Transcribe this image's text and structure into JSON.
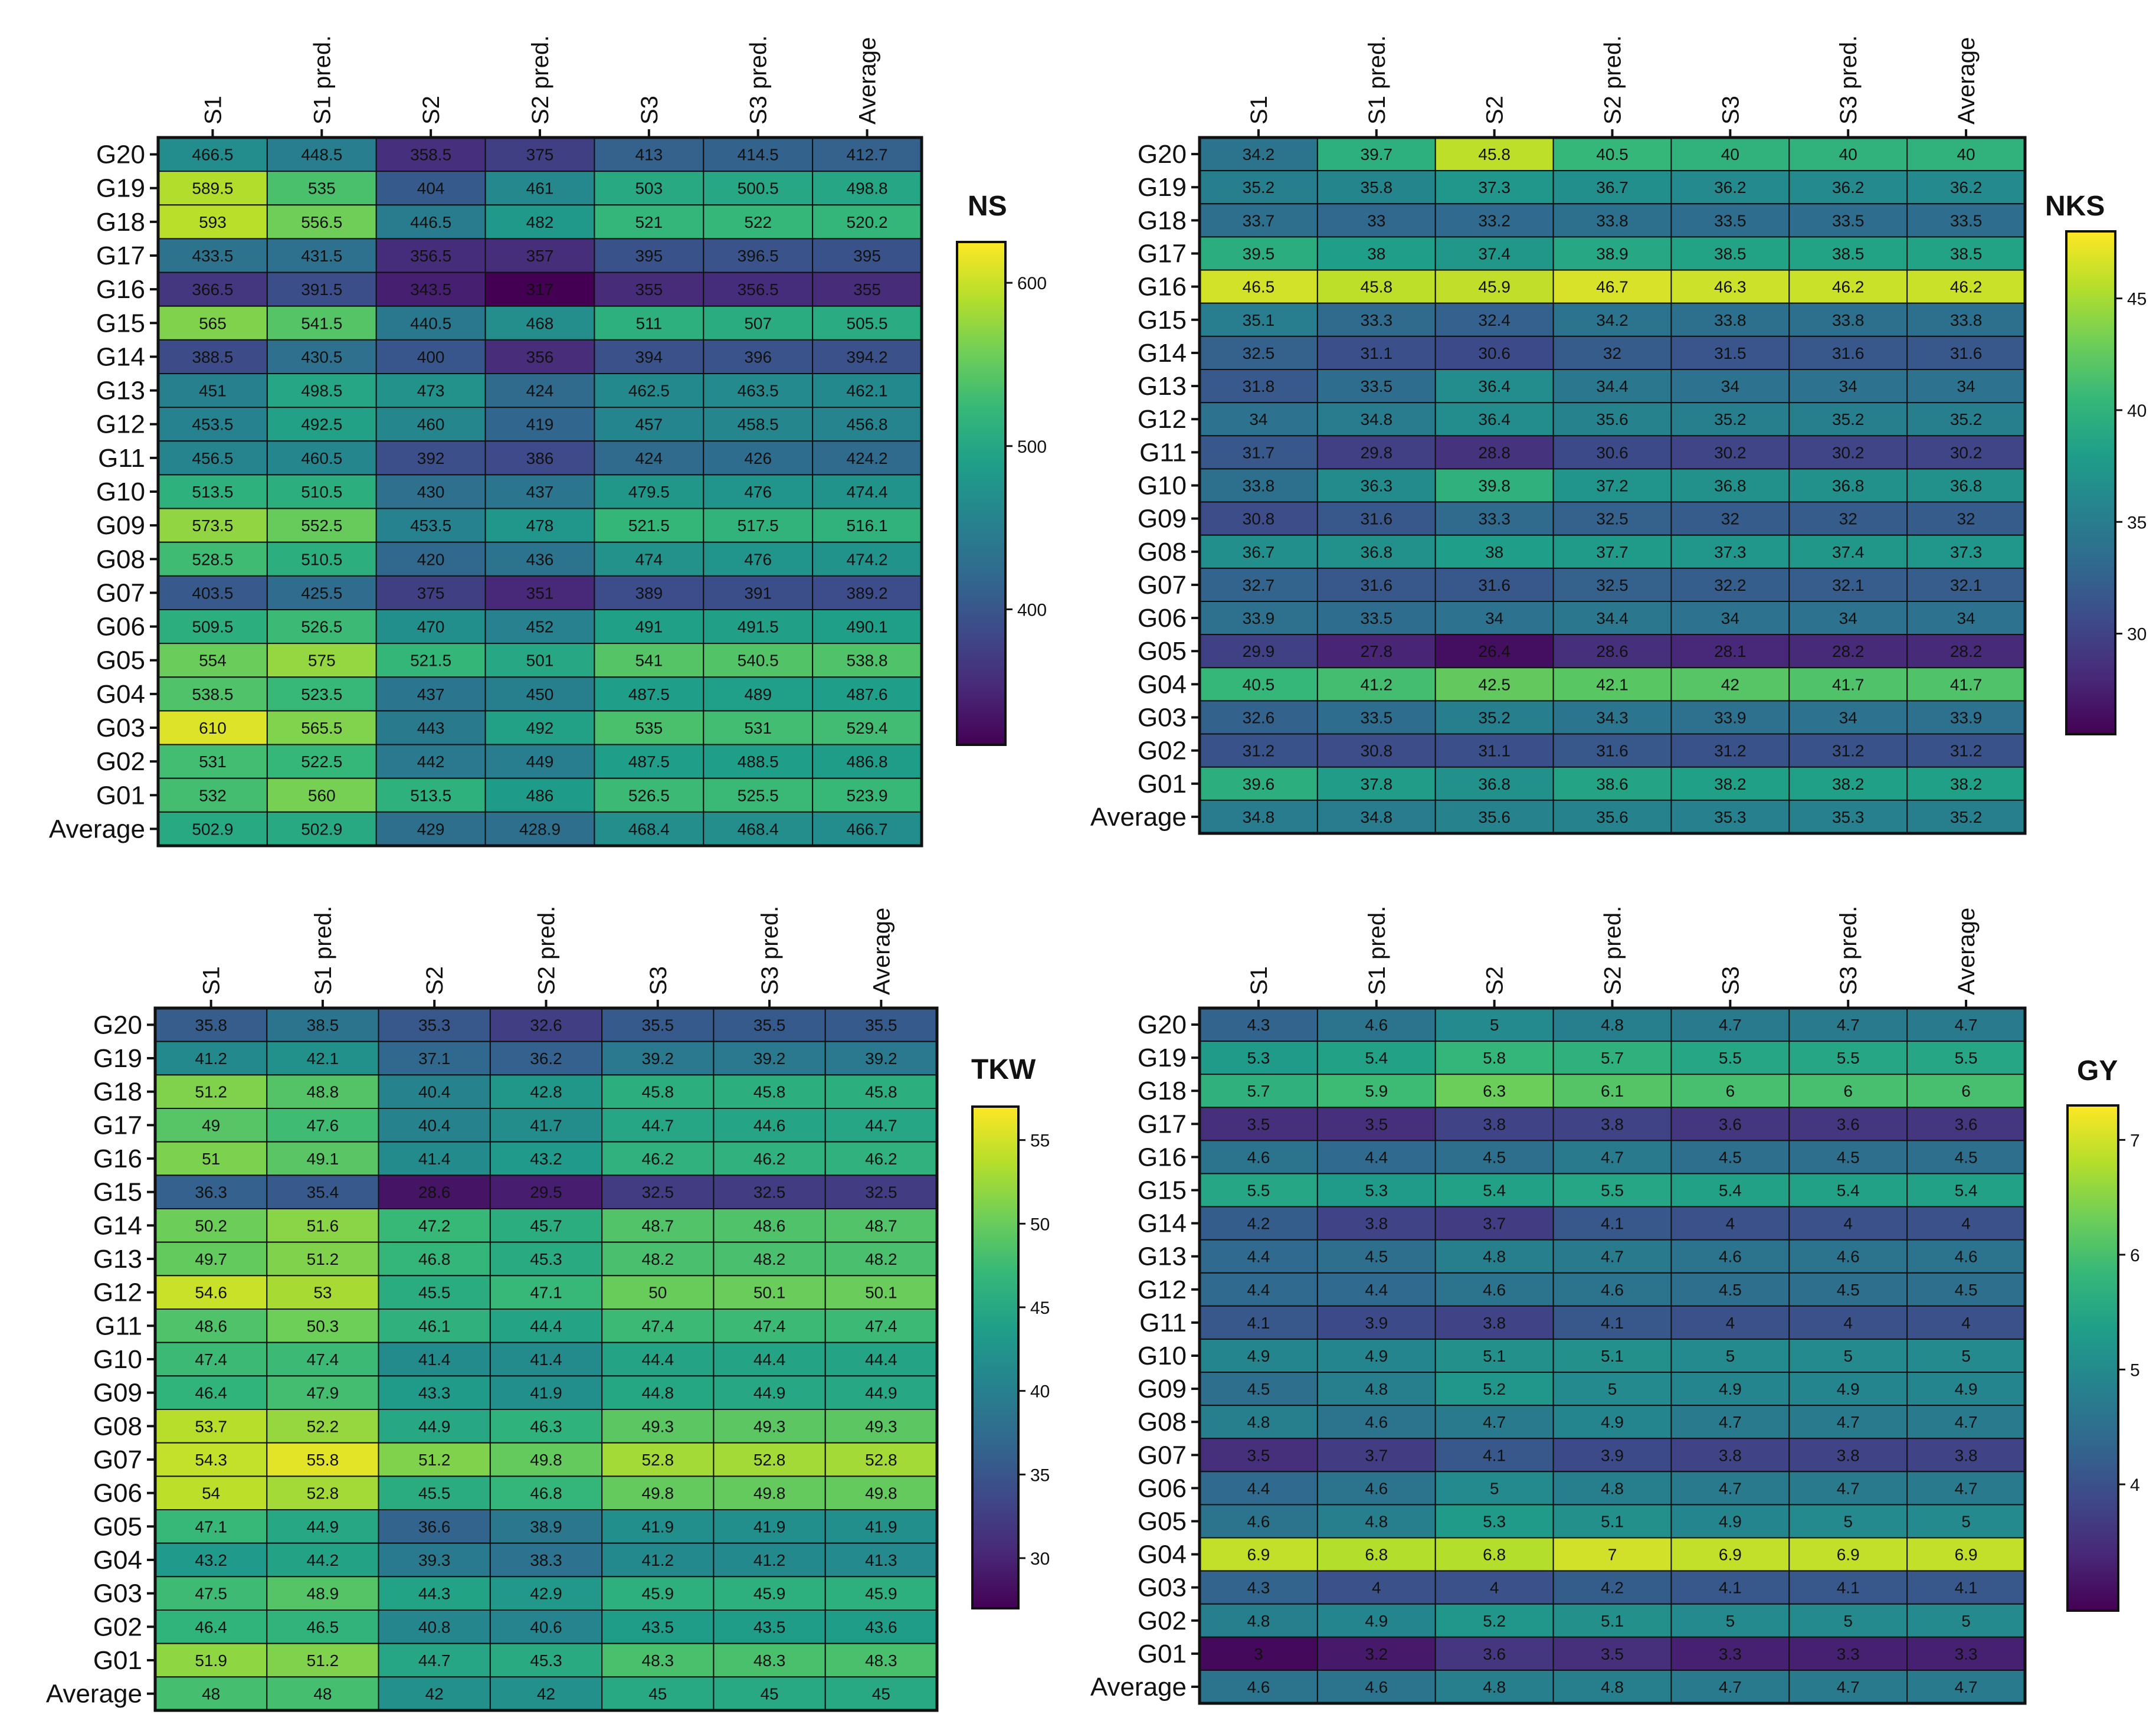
{
  "colors": {
    "viridis": [
      "#440154",
      "#482878",
      "#3e4989",
      "#31688e",
      "#26828e",
      "#1f9e89",
      "#35b779",
      "#6ece58",
      "#b5de2b",
      "#fde725"
    ],
    "outline": "#111111",
    "text": "#111111"
  },
  "chart_data": [
    {
      "type": "heatmap",
      "title": "NS",
      "columns": [
        "S1",
        "S1 pred.",
        "S2",
        "S2 pred.",
        "S3",
        "S3 pred.",
        "Average"
      ],
      "rows": [
        "G20",
        "G19",
        "G18",
        "G17",
        "G16",
        "G15",
        "G14",
        "G13",
        "G12",
        "G11",
        "G10",
        "G09",
        "G08",
        "G07",
        "G06",
        "G05",
        "G04",
        "G03",
        "G02",
        "G01",
        "Average"
      ],
      "values": [
        [
          "466.5",
          "448.5",
          "358.5",
          "375",
          "413",
          "414.5",
          "412.7"
        ],
        [
          "589.5",
          "535",
          "404",
          "461",
          "503",
          "500.5",
          "498.8"
        ],
        [
          "593",
          "556.5",
          "446.5",
          "482",
          "521",
          "522",
          "520.2"
        ],
        [
          "433.5",
          "431.5",
          "356.5",
          "357",
          "395",
          "396.5",
          "395"
        ],
        [
          "366.5",
          "391.5",
          "343.5",
          "317",
          "355",
          "356.5",
          "355"
        ],
        [
          "565",
          "541.5",
          "440.5",
          "468",
          "511",
          "507",
          "505.5"
        ],
        [
          "388.5",
          "430.5",
          "400",
          "356",
          "394",
          "396",
          "394.2"
        ],
        [
          "451",
          "498.5",
          "473",
          "424",
          "462.5",
          "463.5",
          "462.1"
        ],
        [
          "453.5",
          "492.5",
          "460",
          "419",
          "457",
          "458.5",
          "456.8"
        ],
        [
          "456.5",
          "460.5",
          "392",
          "386",
          "424",
          "426",
          "424.2"
        ],
        [
          "513.5",
          "510.5",
          "430",
          "437",
          "479.5",
          "476",
          "474.4"
        ],
        [
          "573.5",
          "552.5",
          "453.5",
          "478",
          "521.5",
          "517.5",
          "516.1"
        ],
        [
          "528.5",
          "510.5",
          "420",
          "436",
          "474",
          "476",
          "474.2"
        ],
        [
          "403.5",
          "425.5",
          "375",
          "351",
          "389",
          "391",
          "389.2"
        ],
        [
          "509.5",
          "526.5",
          "470",
          "452",
          "491",
          "491.5",
          "490.1"
        ],
        [
          "554",
          "575",
          "521.5",
          "501",
          "541",
          "540.5",
          "538.8"
        ],
        [
          "538.5",
          "523.5",
          "437",
          "450",
          "487.5",
          "489",
          "487.6"
        ],
        [
          "610",
          "565.5",
          "443",
          "492",
          "535",
          "531",
          "529.4"
        ],
        [
          "531",
          "522.5",
          "442",
          "449",
          "487.5",
          "488.5",
          "486.8"
        ],
        [
          "532",
          "560",
          "513.5",
          "486",
          "526.5",
          "525.5",
          "523.9"
        ],
        [
          "502.9",
          "502.9",
          "429",
          "428.9",
          "468.4",
          "468.4",
          "466.7"
        ]
      ],
      "colorbar": {
        "range": [
          317,
          625
        ],
        "ticks": [
          400,
          500,
          600
        ]
      }
    },
    {
      "type": "heatmap",
      "title": "NKS",
      "columns": [
        "S1",
        "S1 pred.",
        "S2",
        "S2 pred.",
        "S3",
        "S3 pred.",
        "Average"
      ],
      "rows": [
        "G20",
        "G19",
        "G18",
        "G17",
        "G16",
        "G15",
        "G14",
        "G13",
        "G12",
        "G11",
        "G10",
        "G09",
        "G08",
        "G07",
        "G06",
        "G05",
        "G04",
        "G03",
        "G02",
        "G01",
        "Average"
      ],
      "values": [
        [
          "34.2",
          "39.7",
          "45.8",
          "40.5",
          "40",
          "40",
          "40"
        ],
        [
          "35.2",
          "35.8",
          "37.3",
          "36.7",
          "36.2",
          "36.2",
          "36.2"
        ],
        [
          "33.7",
          "33",
          "33.2",
          "33.8",
          "33.5",
          "33.5",
          "33.5"
        ],
        [
          "39.5",
          "38",
          "37.4",
          "38.9",
          "38.5",
          "38.5",
          "38.5"
        ],
        [
          "46.5",
          "45.8",
          "45.9",
          "46.7",
          "46.3",
          "46.2",
          "46.2"
        ],
        [
          "35.1",
          "33.3",
          "32.4",
          "34.2",
          "33.8",
          "33.8",
          "33.8"
        ],
        [
          "32.5",
          "31.1",
          "30.6",
          "32",
          "31.5",
          "31.6",
          "31.6"
        ],
        [
          "31.8",
          "33.5",
          "36.4",
          "34.4",
          "34",
          "34",
          "34"
        ],
        [
          "34",
          "34.8",
          "36.4",
          "35.6",
          "35.2",
          "35.2",
          "35.2"
        ],
        [
          "31.7",
          "29.8",
          "28.8",
          "30.6",
          "30.2",
          "30.2",
          "30.2"
        ],
        [
          "33.8",
          "36.3",
          "39.8",
          "37.2",
          "36.8",
          "36.8",
          "36.8"
        ],
        [
          "30.8",
          "31.6",
          "33.3",
          "32.5",
          "32",
          "32",
          "32"
        ],
        [
          "36.7",
          "36.8",
          "38",
          "37.7",
          "37.3",
          "37.4",
          "37.3"
        ],
        [
          "32.7",
          "31.6",
          "31.6",
          "32.5",
          "32.2",
          "32.1",
          "32.1"
        ],
        [
          "33.9",
          "33.5",
          "34",
          "34.4",
          "34",
          "34",
          "34"
        ],
        [
          "29.9",
          "27.8",
          "26.4",
          "28.6",
          "28.1",
          "28.2",
          "28.2"
        ],
        [
          "40.5",
          "41.2",
          "42.5",
          "42.1",
          "42",
          "41.7",
          "41.7"
        ],
        [
          "32.6",
          "33.5",
          "35.2",
          "34.3",
          "33.9",
          "34",
          "33.9"
        ],
        [
          "31.2",
          "30.8",
          "31.1",
          "31.6",
          "31.2",
          "31.2",
          "31.2"
        ],
        [
          "39.6",
          "37.8",
          "36.8",
          "38.6",
          "38.2",
          "38.2",
          "38.2"
        ],
        [
          "34.8",
          "34.8",
          "35.6",
          "35.6",
          "35.3",
          "35.3",
          "35.2"
        ]
      ],
      "colorbar": {
        "range": [
          25.5,
          48
        ],
        "ticks": [
          30,
          35,
          40,
          45
        ]
      }
    },
    {
      "type": "heatmap",
      "title": "TKW",
      "columns": [
        "S1",
        "S1 pred.",
        "S2",
        "S2 pred.",
        "S3",
        "S3 pred.",
        "Average"
      ],
      "rows": [
        "G20",
        "G19",
        "G18",
        "G17",
        "G16",
        "G15",
        "G14",
        "G13",
        "G12",
        "G11",
        "G10",
        "G09",
        "G08",
        "G07",
        "G06",
        "G05",
        "G04",
        "G03",
        "G02",
        "G01",
        "Average"
      ],
      "values": [
        [
          "35.8",
          "38.5",
          "35.3",
          "32.6",
          "35.5",
          "35.5",
          "35.5"
        ],
        [
          "41.2",
          "42.1",
          "37.1",
          "36.2",
          "39.2",
          "39.2",
          "39.2"
        ],
        [
          "51.2",
          "48.8",
          "40.4",
          "42.8",
          "45.8",
          "45.8",
          "45.8"
        ],
        [
          "49",
          "47.6",
          "40.4",
          "41.7",
          "44.7",
          "44.6",
          "44.7"
        ],
        [
          "51",
          "49.1",
          "41.4",
          "43.2",
          "46.2",
          "46.2",
          "46.2"
        ],
        [
          "36.3",
          "35.4",
          "28.6",
          "29.5",
          "32.5",
          "32.5",
          "32.5"
        ],
        [
          "50.2",
          "51.6",
          "47.2",
          "45.7",
          "48.7",
          "48.6",
          "48.7"
        ],
        [
          "49.7",
          "51.2",
          "46.8",
          "45.3",
          "48.2",
          "48.2",
          "48.2"
        ],
        [
          "54.6",
          "53",
          "45.5",
          "47.1",
          "50",
          "50.1",
          "50.1"
        ],
        [
          "48.6",
          "50.3",
          "46.1",
          "44.4",
          "47.4",
          "47.4",
          "47.4"
        ],
        [
          "47.4",
          "47.4",
          "41.4",
          "41.4",
          "44.4",
          "44.4",
          "44.4"
        ],
        [
          "46.4",
          "47.9",
          "43.3",
          "41.9",
          "44.8",
          "44.9",
          "44.9"
        ],
        [
          "53.7",
          "52.2",
          "44.9",
          "46.3",
          "49.3",
          "49.3",
          "49.3"
        ],
        [
          "54.3",
          "55.8",
          "51.2",
          "49.8",
          "52.8",
          "52.8",
          "52.8"
        ],
        [
          "54",
          "52.8",
          "45.5",
          "46.8",
          "49.8",
          "49.8",
          "49.8"
        ],
        [
          "47.1",
          "44.9",
          "36.6",
          "38.9",
          "41.9",
          "41.9",
          "41.9"
        ],
        [
          "43.2",
          "44.2",
          "39.3",
          "38.3",
          "41.2",
          "41.2",
          "41.3"
        ],
        [
          "47.5",
          "48.9",
          "44.3",
          "42.9",
          "45.9",
          "45.9",
          "45.9"
        ],
        [
          "46.4",
          "46.5",
          "40.8",
          "40.6",
          "43.5",
          "43.5",
          "43.6"
        ],
        [
          "51.9",
          "51.2",
          "44.7",
          "45.3",
          "48.3",
          "48.3",
          "48.3"
        ],
        [
          "48",
          "48",
          "42",
          "42",
          "45",
          "45",
          "45"
        ]
      ],
      "colorbar": {
        "range": [
          27,
          57
        ],
        "ticks": [
          30,
          35,
          40,
          45,
          50,
          55
        ]
      }
    },
    {
      "type": "heatmap",
      "title": "GY",
      "columns": [
        "S1",
        "S1 pred.",
        "S2",
        "S2 pred.",
        "S3",
        "S3 pred.",
        "Average"
      ],
      "rows": [
        "G20",
        "G19",
        "G18",
        "G17",
        "G16",
        "G15",
        "G14",
        "G13",
        "G12",
        "G11",
        "G10",
        "G09",
        "G08",
        "G07",
        "G06",
        "G05",
        "G04",
        "G03",
        "G02",
        "G01",
        "Average"
      ],
      "values": [
        [
          "4.3",
          "4.6",
          "5",
          "4.8",
          "4.7",
          "4.7",
          "4.7"
        ],
        [
          "5.3",
          "5.4",
          "5.8",
          "5.7",
          "5.5",
          "5.5",
          "5.5"
        ],
        [
          "5.7",
          "5.9",
          "6.3",
          "6.1",
          "6",
          "6",
          "6"
        ],
        [
          "3.5",
          "3.5",
          "3.8",
          "3.8",
          "3.6",
          "3.6",
          "3.6"
        ],
        [
          "4.6",
          "4.4",
          "4.5",
          "4.7",
          "4.5",
          "4.5",
          "4.5"
        ],
        [
          "5.5",
          "5.3",
          "5.4",
          "5.5",
          "5.4",
          "5.4",
          "5.4"
        ],
        [
          "4.2",
          "3.8",
          "3.7",
          "4.1",
          "4",
          "4",
          "4"
        ],
        [
          "4.4",
          "4.5",
          "4.8",
          "4.7",
          "4.6",
          "4.6",
          "4.6"
        ],
        [
          "4.4",
          "4.4",
          "4.6",
          "4.6",
          "4.5",
          "4.5",
          "4.5"
        ],
        [
          "4.1",
          "3.9",
          "3.8",
          "4.1",
          "4",
          "4",
          "4"
        ],
        [
          "4.9",
          "4.9",
          "5.1",
          "5.1",
          "5",
          "5",
          "5"
        ],
        [
          "4.5",
          "4.8",
          "5.2",
          "5",
          "4.9",
          "4.9",
          "4.9"
        ],
        [
          "4.8",
          "4.6",
          "4.7",
          "4.9",
          "4.7",
          "4.7",
          "4.7"
        ],
        [
          "3.5",
          "3.7",
          "4.1",
          "3.9",
          "3.8",
          "3.8",
          "3.8"
        ],
        [
          "4.4",
          "4.6",
          "5",
          "4.8",
          "4.7",
          "4.7",
          "4.7"
        ],
        [
          "4.6",
          "4.8",
          "5.3",
          "5.1",
          "4.9",
          "5",
          "5"
        ],
        [
          "6.9",
          "6.8",
          "6.8",
          "7",
          "6.9",
          "6.9",
          "6.9"
        ],
        [
          "4.3",
          "4",
          "4",
          "4.2",
          "4.1",
          "4.1",
          "4.1"
        ],
        [
          "4.8",
          "4.9",
          "5.2",
          "5.1",
          "5",
          "5",
          "5"
        ],
        [
          "3",
          "3.2",
          "3.6",
          "3.5",
          "3.3",
          "3.3",
          "3.3"
        ],
        [
          "4.6",
          "4.6",
          "4.8",
          "4.8",
          "4.7",
          "4.7",
          "4.7"
        ]
      ],
      "colorbar": {
        "range": [
          2.9,
          7.3
        ],
        "ticks": [
          4,
          5,
          6,
          7
        ]
      }
    }
  ]
}
